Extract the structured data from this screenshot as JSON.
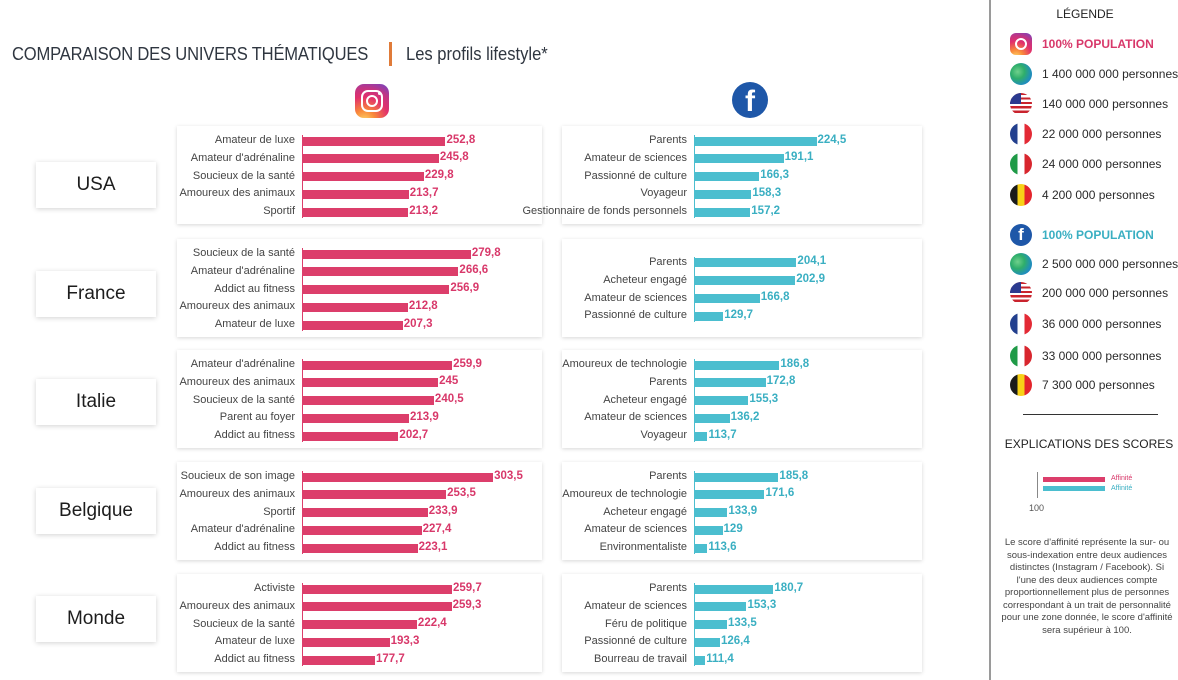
{
  "header": {
    "title": "COMPARAISON DES UNIVERS THÉMATIQUES",
    "subtitle": "Les profils lifestyle*"
  },
  "colors": {
    "instagram": "#dc3e6b",
    "facebook": "#4bbecf",
    "separator": "#e07b39"
  },
  "icons": {
    "instagram": "instagram-icon",
    "facebook": "facebook-icon"
  },
  "chart_data": {
    "type": "bar",
    "orientation": "horizontal",
    "baseline": 100,
    "countries": [
      {
        "name": "USA",
        "instagram": {
          "labels": [
            "Amateur de luxe",
            "Amateur d'adrénaline",
            "Soucieux de la santé",
            "Amoureux des animaux",
            "Sportif"
          ],
          "values": [
            252.8,
            245.8,
            229.8,
            213.7,
            213.2
          ],
          "value_labels": [
            "252,8",
            "245,8",
            "229,8",
            "213,7",
            "213,2"
          ]
        },
        "facebook": {
          "labels": [
            "Parents",
            "Amateur de sciences",
            "Passionné de culture",
            "Voyageur",
            "Gestionnaire de fonds personnels"
          ],
          "values": [
            224.5,
            191.1,
            166.3,
            158.3,
            157.2
          ],
          "value_labels": [
            "224,5",
            "191,1",
            "166,3",
            "158,3",
            "157,2"
          ]
        }
      },
      {
        "name": "France",
        "instagram": {
          "labels": [
            "Soucieux de la santé",
            "Amateur d'adrénaline",
            "Addict au fitness",
            "Amoureux des animaux",
            "Amateur de luxe"
          ],
          "values": [
            279.8,
            266.6,
            256.9,
            212.8,
            207.3
          ],
          "value_labels": [
            "279,8",
            "266,6",
            "256,9",
            "212,8",
            "207,3"
          ]
        },
        "facebook": {
          "labels": [
            "Parents",
            "Acheteur engagé",
            "Amateur de sciences",
            "Passionné de culture"
          ],
          "values": [
            204.1,
            202.9,
            166.8,
            129.7
          ],
          "value_labels": [
            "204,1",
            "202,9",
            "166,8",
            "129,7"
          ]
        }
      },
      {
        "name": "Italie",
        "instagram": {
          "labels": [
            "Amateur d'adrénaline",
            "Amoureux des animaux",
            "Soucieux de la santé",
            "Parent au foyer",
            "Addict au fitness"
          ],
          "values": [
            259.9,
            245,
            240.5,
            213.9,
            202.7
          ],
          "value_labels": [
            "259,9",
            "245",
            "240,5",
            "213,9",
            "202,7"
          ]
        },
        "facebook": {
          "labels": [
            "Amoureux de technologie",
            "Parents",
            "Acheteur engagé",
            "Amateur de sciences",
            "Voyageur"
          ],
          "values": [
            186.8,
            172.8,
            155.3,
            136.2,
            113.7
          ],
          "value_labels": [
            "186,8",
            "172,8",
            "155,3",
            "136,2",
            "113,7"
          ]
        }
      },
      {
        "name": "Belgique",
        "instagram": {
          "labels": [
            "Soucieux de son image",
            "Amoureux des animaux",
            "Sportif",
            "Amateur d'adrénaline",
            "Addict au fitness"
          ],
          "values": [
            303.5,
            253.5,
            233.9,
            227.4,
            223.1
          ],
          "value_labels": [
            "303,5",
            "253,5",
            "233,9",
            "227,4",
            "223,1"
          ]
        },
        "facebook": {
          "labels": [
            "Parents",
            "Amoureux de technologie",
            "Acheteur engagé",
            "Amateur de sciences",
            "Environmentaliste"
          ],
          "values": [
            185.8,
            171.6,
            133.9,
            129,
            113.6
          ],
          "value_labels": [
            "185,8",
            "171,6",
            "133,9",
            "129",
            "113,6"
          ]
        }
      },
      {
        "name": "Monde",
        "instagram": {
          "labels": [
            "Activiste",
            "Amoureux des animaux",
            "Soucieux de la santé",
            "Amateur de luxe",
            "Addict au fitness"
          ],
          "values": [
            259.7,
            259.3,
            222.4,
            193.3,
            177.7
          ],
          "value_labels": [
            "259,7",
            "259,3",
            "222,4",
            "193,3",
            "177,7"
          ]
        },
        "facebook": {
          "labels": [
            "Parents",
            "Amateur de sciences",
            "Féru de politique",
            "Passionné de culture",
            "Bourreau de travail"
          ],
          "values": [
            180.7,
            153.3,
            133.5,
            126.4,
            111.4
          ],
          "value_labels": [
            "180,7",
            "153,3",
            "133,5",
            "126,4",
            "111,4"
          ]
        }
      }
    ]
  },
  "legend": {
    "title": "LÉGENDE",
    "instagram_items": [
      {
        "icon": "instagram-icon",
        "text": "100% POPULATION"
      },
      {
        "icon": "globe-icon",
        "text": "1 400 000 000 personnes"
      },
      {
        "icon": "flag-us-icon",
        "text": "140 000 000 personnes"
      },
      {
        "icon": "flag-fr-icon",
        "text": "22 000 000 personnes"
      },
      {
        "icon": "flag-it-icon",
        "text": "24 000 000 personnes"
      },
      {
        "icon": "flag-be-icon",
        "text": "4 200 000 personnes"
      }
    ],
    "facebook_items": [
      {
        "icon": "facebook-icon",
        "text": "100% POPULATION"
      },
      {
        "icon": "globe-icon",
        "text": "2 500 000 000 personnes"
      },
      {
        "icon": "flag-us-icon",
        "text": "200 000 000 personnes"
      },
      {
        "icon": "flag-fr-icon",
        "text": "36 000 000 personnes"
      },
      {
        "icon": "flag-it-icon",
        "text": "33 000 000 personnes"
      },
      {
        "icon": "flag-be-icon",
        "text": "7 300 000 personnes"
      }
    ]
  },
  "scores": {
    "title": "EXPLICATIONS DES SCORES",
    "label_instagram": "Affinité",
    "label_facebook": "Affinité",
    "axis_value": "100",
    "explanation": "Le score d'affinité représente la sur- ou sous-indexation entre deux audiences distinctes (Instagram / Facebook). Si l'une des deux audiences compte proportionnellement plus de personnes correspondant à un trait de personnalité pour une zone donnée, le score d'affinité sera supérieur à 100."
  }
}
